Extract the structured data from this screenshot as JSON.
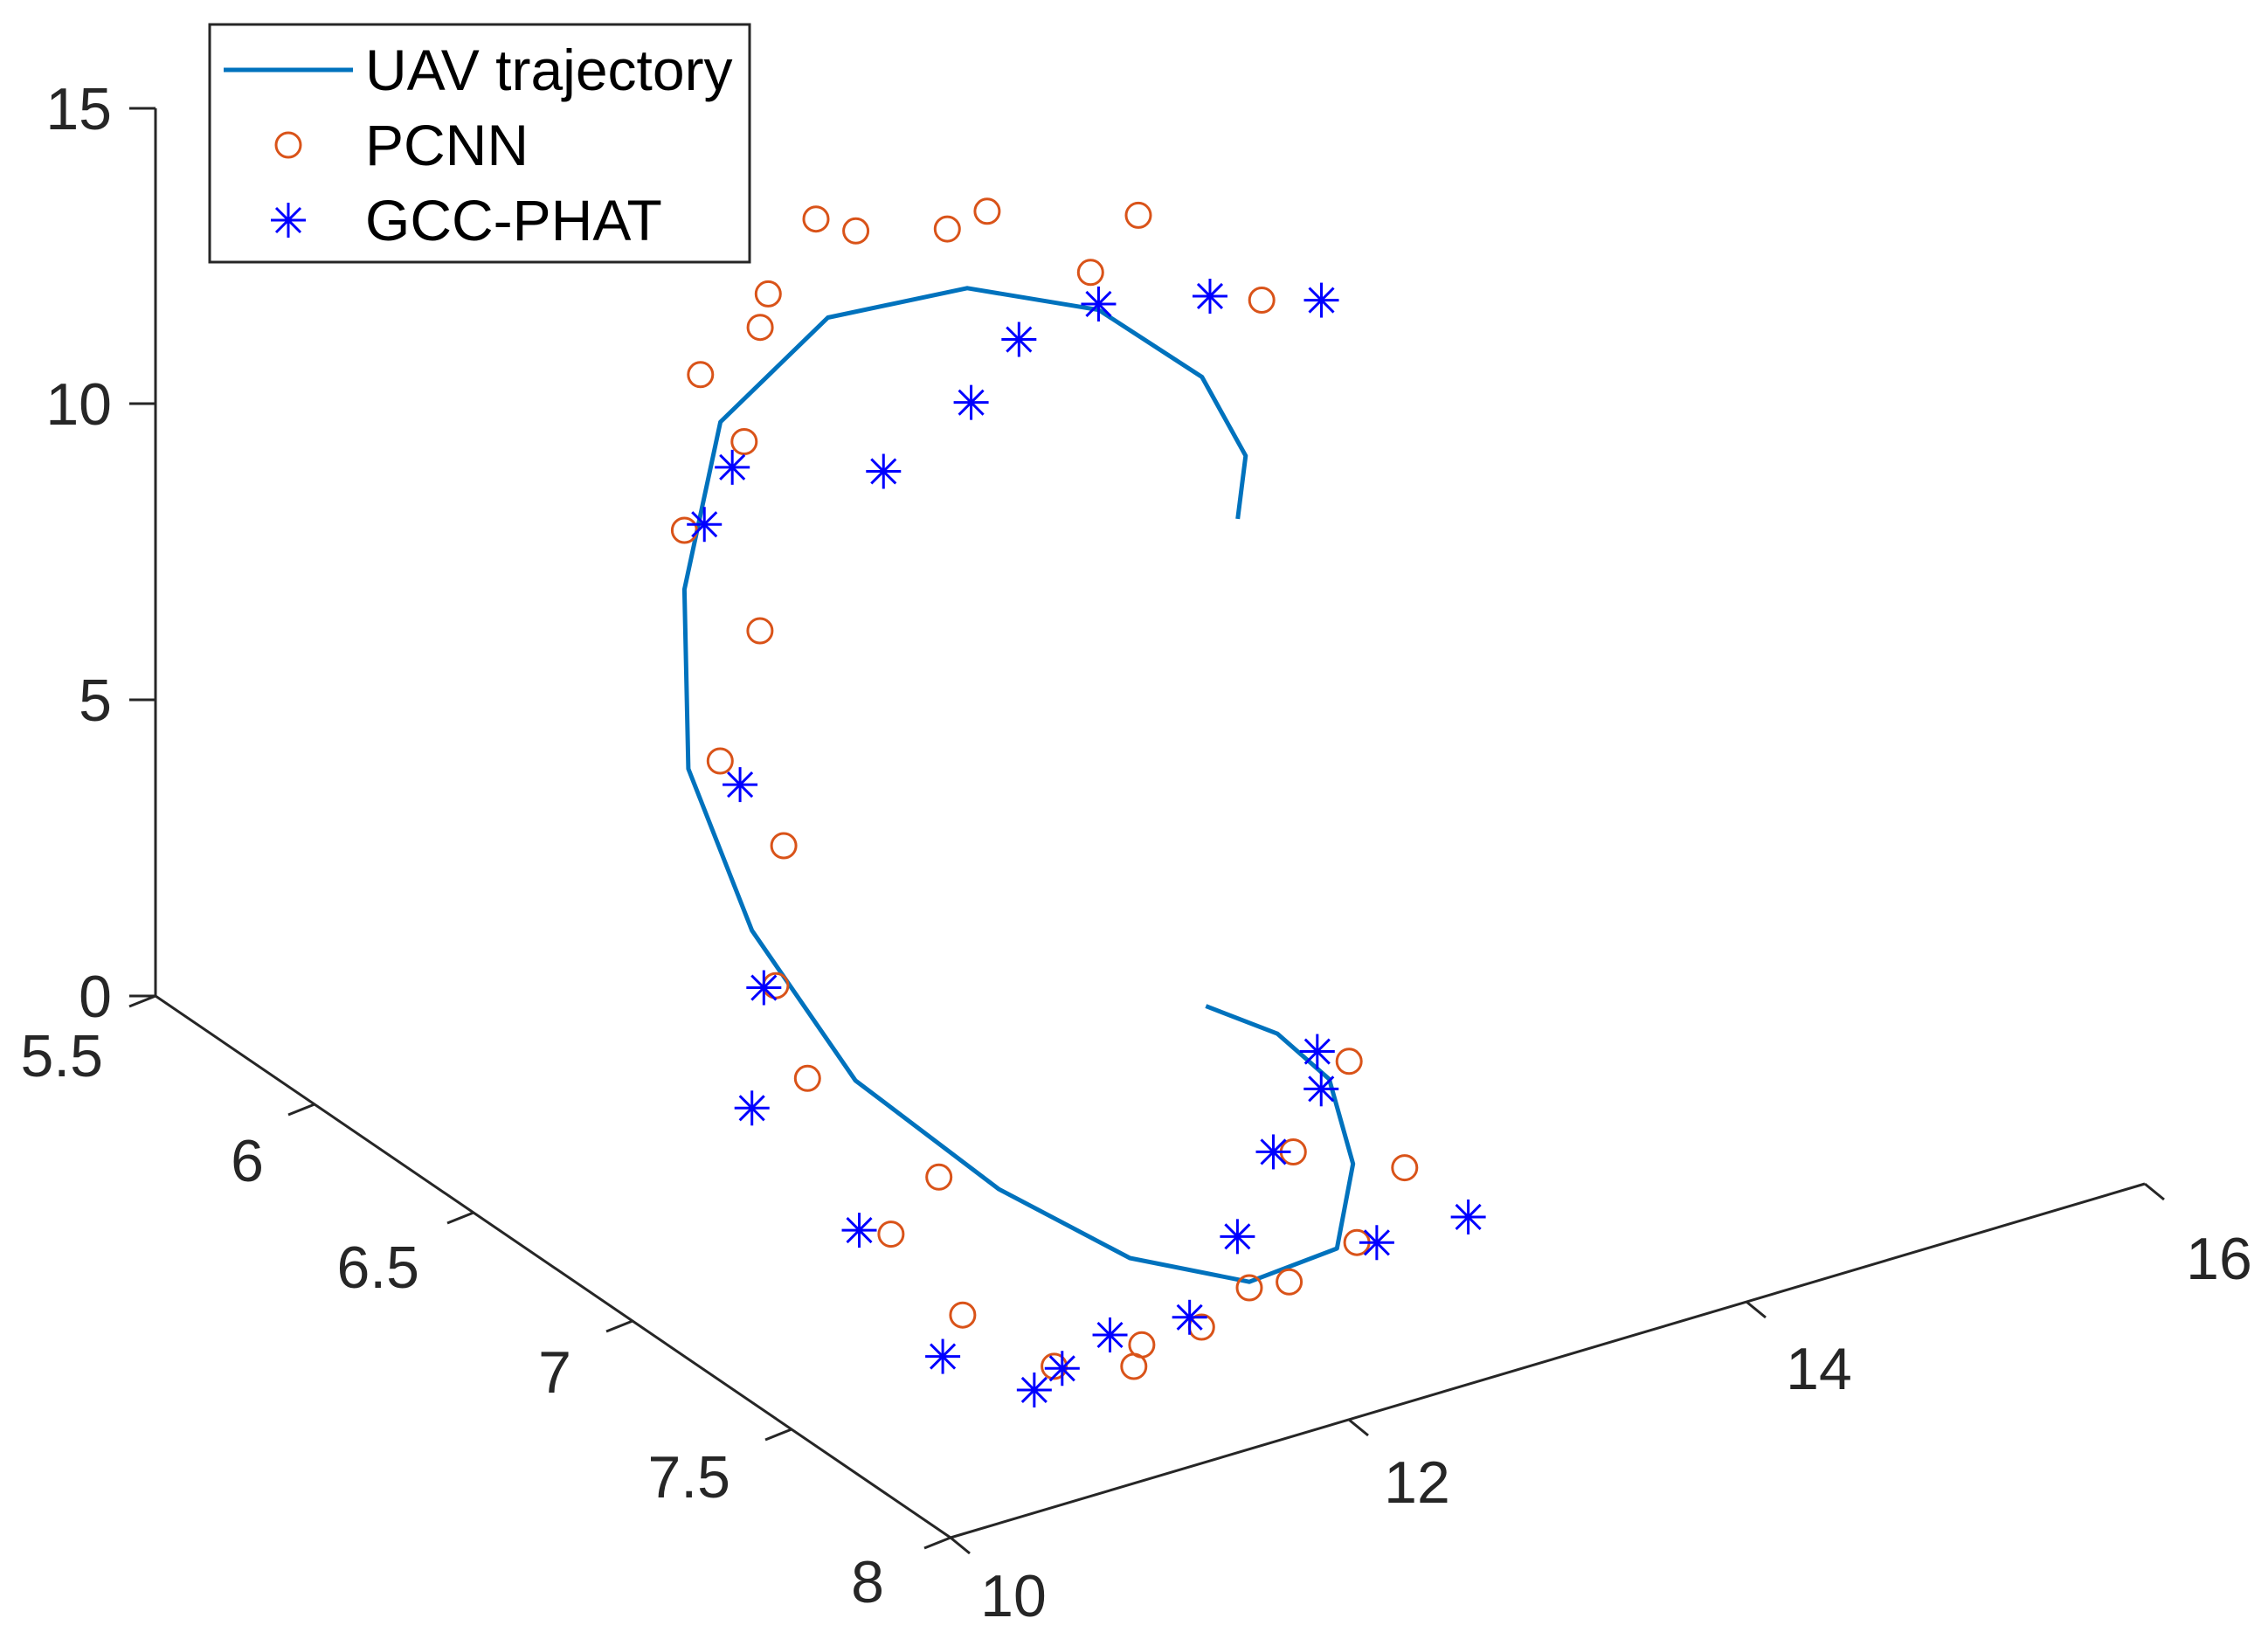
{
  "chart_data": {
    "type": "scatter",
    "title": "",
    "xlabel": "",
    "ylabel": "",
    "zlabel": "",
    "projection": "3d",
    "grid": false,
    "legend_position": "top-left",
    "axes": {
      "x": {
        "range": [
          10,
          16
        ],
        "ticks": [
          "10",
          "12",
          "14",
          "16"
        ]
      },
      "y": {
        "range": [
          5.5,
          8
        ],
        "ticks": [
          "5.5",
          "6",
          "6.5",
          "7",
          "7.5",
          "8"
        ]
      },
      "z": {
        "range": [
          0,
          15
        ],
        "ticks": [
          "0",
          "5",
          "10",
          "15"
        ]
      }
    },
    "legend": [
      {
        "label": "UAV trajectory",
        "color": "#0072BD",
        "marker": "line"
      },
      {
        "label": "PCNN",
        "color": "#D95319",
        "marker": "circle"
      },
      {
        "label": "GCC-PHAT",
        "color": "#0000FF",
        "marker": "asterisk"
      }
    ],
    "series": [
      {
        "name": "UAV trajectory",
        "type": "line",
        "color": "#0072BD",
        "x": [
          13.2,
          13.4,
          13.5,
          13.3,
          12.8,
          12.1,
          11.4,
          10.9,
          10.6,
          10.6,
          10.8,
          11.2,
          11.7,
          12.3,
          12.9,
          13.3,
          13.5,
          13.4,
          13.2
        ],
        "y": [
          6.9,
          6.8,
          6.6,
          6.4,
          6.3,
          6.3,
          6.4,
          6.6,
          6.8,
          7.0,
          7.2,
          7.4,
          7.5,
          7.5,
          7.4,
          7.2,
          7.0,
          6.9,
          6.8
        ],
        "z": [
          10.0,
          10.5,
          11.0,
          11.6,
          12.1,
          12.3,
          11.6,
          10.0,
          8.0,
          6.0,
          4.0,
          2.5,
          1.2,
          0.2,
          -0.2,
          0.1,
          0.6,
          1.1,
          1.4
        ]
      },
      {
        "name": "PCNN",
        "type": "scatter",
        "marker": "circle",
        "color": "#D95319",
        "x": [
          10.4,
          10.6,
          10.9,
          11.3,
          11.8,
          12.4,
          12.9,
          13.5,
          13.8,
          13.1,
          12.7,
          12.2,
          11.6,
          11.2,
          10.8,
          10.6,
          10.4,
          10.5,
          10.7,
          11.0,
          11.4,
          11.9,
          12.5,
          13.0,
          13.4,
          13.6,
          13.0,
          12.3,
          11.6,
          10.9
        ],
        "y": [
          7.2,
          6.9,
          6.6,
          6.4,
          6.3,
          6.2,
          6.3,
          6.4,
          6.6,
          6.5,
          6.3,
          6.2,
          6.4,
          6.6,
          6.9,
          7.1,
          7.3,
          7.5,
          7.6,
          7.7,
          7.7,
          7.6,
          7.5,
          7.4,
          7.3,
          7.0,
          7.2,
          7.5,
          7.6,
          7.4
        ],
        "z": [
          6.0,
          8.5,
          11.0,
          12.5,
          13.0,
          13.1,
          13.3,
          13.0,
          12.0,
          12.8,
          13.2,
          13.5,
          13.0,
          12.2,
          10.5,
          7.8,
          4.8,
          2.8,
          1.6,
          0.8,
          0.4,
          0.2,
          0.0,
          -0.2,
          0.3,
          0.8,
          0.6,
          0.1,
          0.2,
          3.0
        ]
      },
      {
        "name": "GCC-PHAT",
        "type": "scatter",
        "marker": "asterisk",
        "color": "#0000FF",
        "x": [
          10.5,
          10.7,
          11.0,
          11.3,
          11.9,
          12.5,
          12.9,
          13.3,
          13.7,
          14.1,
          12.0,
          12.2,
          10.6,
          10.5,
          10.6,
          10.9,
          11.2,
          11.6,
          12.0,
          12.4,
          12.9,
          13.3,
          13.1,
          13.6,
          13.4
        ],
        "y": [
          7.1,
          6.9,
          6.6,
          6.5,
          6.6,
          6.5,
          6.4,
          6.4,
          6.5,
          6.6,
          5.8,
          5.9,
          7.0,
          7.4,
          7.6,
          7.7,
          7.6,
          7.5,
          7.5,
          7.4,
          7.2,
          7.1,
          7.4,
          6.9,
          7.5
        ],
        "z": [
          5.5,
          8.0,
          11.0,
          11.3,
          11.0,
          11.2,
          11.5,
          11.7,
          11.8,
          11.7,
          14.9,
          14.6,
          3.0,
          2.5,
          1.0,
          0.5,
          0.2,
          0.0,
          -0.1,
          0.5,
          0.7,
          1.0,
          -0.3,
          0.6,
          0.2
        ]
      }
    ]
  }
}
